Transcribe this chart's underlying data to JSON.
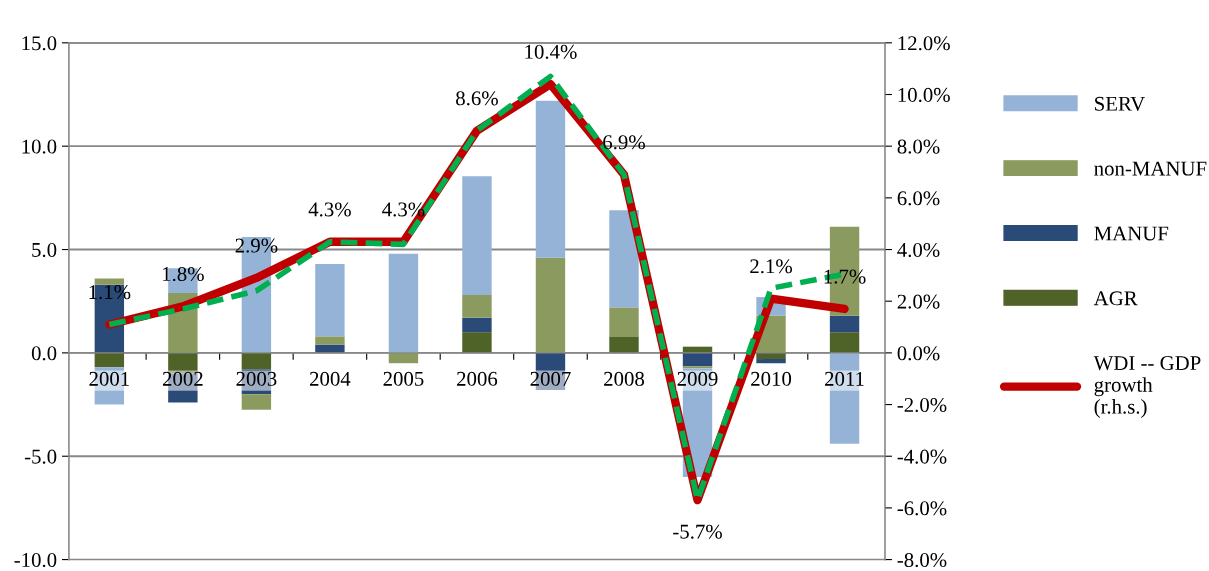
{
  "chart_data": {
    "type": "bar",
    "stacked": true,
    "categories": [
      "2001",
      "2002",
      "2003",
      "2004",
      "2005",
      "2006",
      "2007",
      "2008",
      "2009",
      "2010",
      "2011"
    ],
    "series": [
      {
        "name": "AGR",
        "color": "#4f6228",
        "values": [
          -0.7,
          -1.0,
          -0.8,
          0.0,
          0.0,
          1.0,
          0.0,
          0.8,
          0.3,
          -0.3,
          1.0
        ]
      },
      {
        "name": "MANUF",
        "color": "#2a4a78",
        "values": [
          3.3,
          -1.4,
          -1.2,
          0.4,
          0.0,
          0.7,
          -1.8,
          0.0,
          -0.65,
          -0.2,
          0.8
        ]
      },
      {
        "name": "non-MANUF",
        "color": "#8b9a5e",
        "values": [
          0.3,
          2.9,
          -0.75,
          0.4,
          -0.5,
          1.1,
          4.6,
          1.4,
          -0.1,
          1.8,
          4.3
        ]
      },
      {
        "name": "SERV",
        "color": "#95b3d7",
        "values": [
          -1.8,
          1.2,
          5.6,
          3.5,
          4.8,
          5.75,
          7.6,
          4.7,
          -5.25,
          0.9,
          -4.4
        ]
      },
      {
        "type": "line",
        "axis": "y2",
        "color": "#00b050",
        "line_style": "dashed",
        "values": [
          1.1,
          1.7,
          2.4,
          4.3,
          4.2,
          8.6,
          10.7,
          6.9,
          -5.7,
          2.5,
          3.05
        ]
      },
      {
        "name": "WDI -- GDP growth (r.h.s.)",
        "type": "line",
        "axis": "y2",
        "color": "#c00000",
        "line_style": "solid",
        "values": [
          1.1,
          1.8,
          2.9,
          4.3,
          4.3,
          8.6,
          10.4,
          6.9,
          -5.7,
          2.1,
          1.7
        ],
        "value_labels": [
          "1.1%",
          "1.8%",
          "2.9%",
          "4.3%",
          "4.3%",
          "8.6%",
          "10.4%",
          "6.9%",
          "-5.7%",
          "2.1%",
          "1.7%"
        ]
      }
    ],
    "ylim": [
      -10,
      15
    ],
    "yticks": [
      {
        "value": -10,
        "label": "-10.0"
      },
      {
        "value": -5,
        "label": "-5.0"
      },
      {
        "value": 0,
        "label": "0.0"
      },
      {
        "value": 5,
        "label": "5.0"
      },
      {
        "value": 10,
        "label": "10.0"
      },
      {
        "value": 15,
        "label": "15.0"
      }
    ],
    "y2lim": [
      -8,
      12
    ],
    "y2ticks": [
      {
        "value": -8,
        "label": "-8.0%"
      },
      {
        "value": -6,
        "label": "-6.0%"
      },
      {
        "value": -4,
        "label": "-4.0%"
      },
      {
        "value": -2,
        "label": "-2.0%"
      },
      {
        "value": 0,
        "label": "0.0%"
      },
      {
        "value": 2,
        "label": "2.0%"
      },
      {
        "value": 4,
        "label": "4.0%"
      },
      {
        "value": 6,
        "label": "6.0%"
      },
      {
        "value": 8,
        "label": "8.0%"
      },
      {
        "value": 10,
        "label": "10.0%"
      },
      {
        "value": 12,
        "label": "12.0%"
      }
    ],
    "grid": "y",
    "legend": "right",
    "marker": "none"
  }
}
